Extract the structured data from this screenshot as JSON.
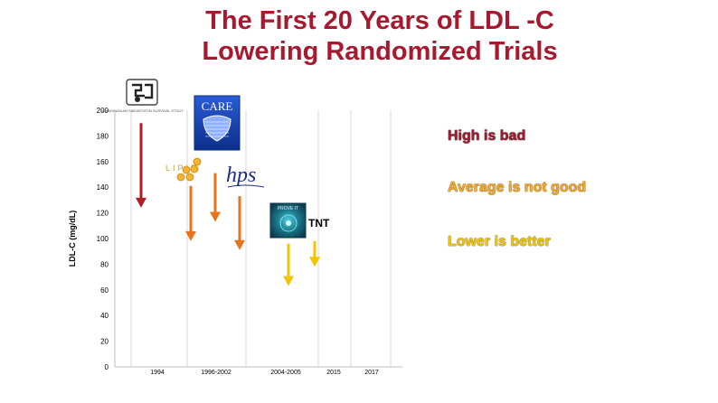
{
  "title": "The First 20 Years of LDL -C Lowering Randomized Trials",
  "notes": {
    "high": "High is bad",
    "average": "Average is not good",
    "lower": "Lower is better"
  },
  "colors": {
    "title": "#a6192e",
    "high": "#b01e23",
    "average": "#e8731c",
    "lower": "#f5c400"
  },
  "chart_data": {
    "type": "arrow-range",
    "ylabel": "LDL-C (mg/dL)",
    "ylim": [
      0,
      200
    ],
    "yticks": [
      0,
      20,
      40,
      60,
      80,
      100,
      120,
      140,
      160,
      180,
      200
    ],
    "xticks": [
      "1994",
      "1996-2002",
      "2004-2005",
      "2015",
      "2017"
    ],
    "grid": "vertical",
    "series": [
      {
        "label": "4S",
        "group": "1994",
        "from": 190,
        "to": 124,
        "color": "high",
        "icon": "scandinavian-simvastatin-logo"
      },
      {
        "label": "LIPID",
        "group": "1996-2002",
        "from": 141,
        "to": 98,
        "color": "average",
        "icon": "lipid-logo"
      },
      {
        "label": "CARE",
        "group": "1996-2002",
        "from": 151,
        "to": 113,
        "color": "average",
        "icon": "care-logo"
      },
      {
        "label": "HPS",
        "group": "1996-2002",
        "from": 133,
        "to": 91,
        "color": "average",
        "icon": "hps-logo"
      },
      {
        "label": "PROVE IT",
        "group": "2004-2005",
        "from": 96,
        "to": 63,
        "color": "lower",
        "icon": "prove-it-logo"
      },
      {
        "label": "TNT",
        "group": "2004-2005",
        "from": 98,
        "to": 78,
        "color": "lower",
        "icon": "tnt-label"
      }
    ],
    "logos": {
      "care": "CARE",
      "lipid": "LIPID",
      "hps": "hps",
      "proveit": "PROVE IT",
      "tnt": "TNT",
      "scandi": "SCANDINAVIAN SIMVASTATIN SURVIVAL STUDY"
    }
  }
}
